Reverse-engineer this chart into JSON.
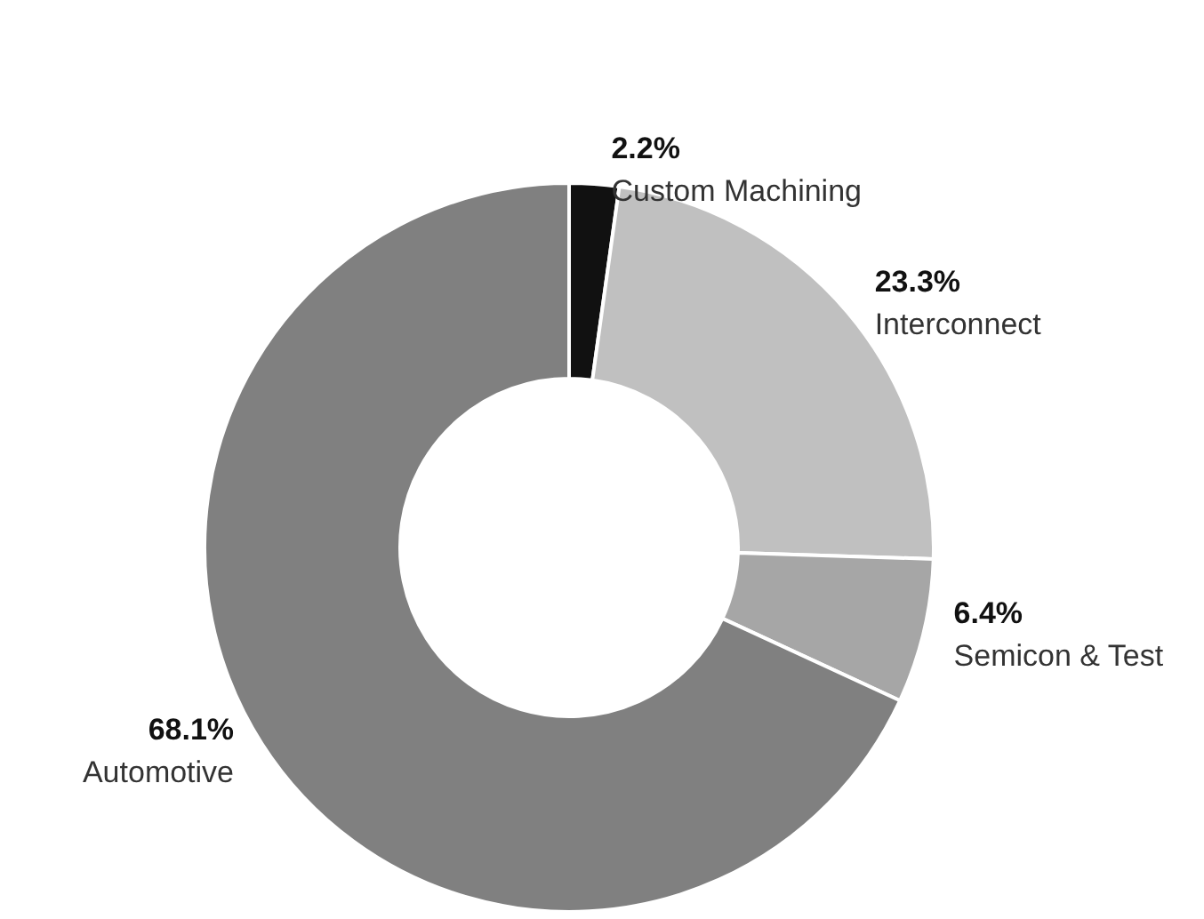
{
  "chart_data": {
    "type": "donut",
    "categories": [
      "Custom Machining",
      "Interconnect",
      "Semicon & Test",
      "Automotive"
    ],
    "values": [
      2.2,
      23.3,
      6.4,
      68.1
    ],
    "value_labels": [
      "2.2%",
      "23.3%",
      "6.4%",
      "68.1%"
    ],
    "colors": [
      "#111111",
      "#c0c0c0",
      "#a6a6a6",
      "#808080"
    ],
    "legend": false
  }
}
